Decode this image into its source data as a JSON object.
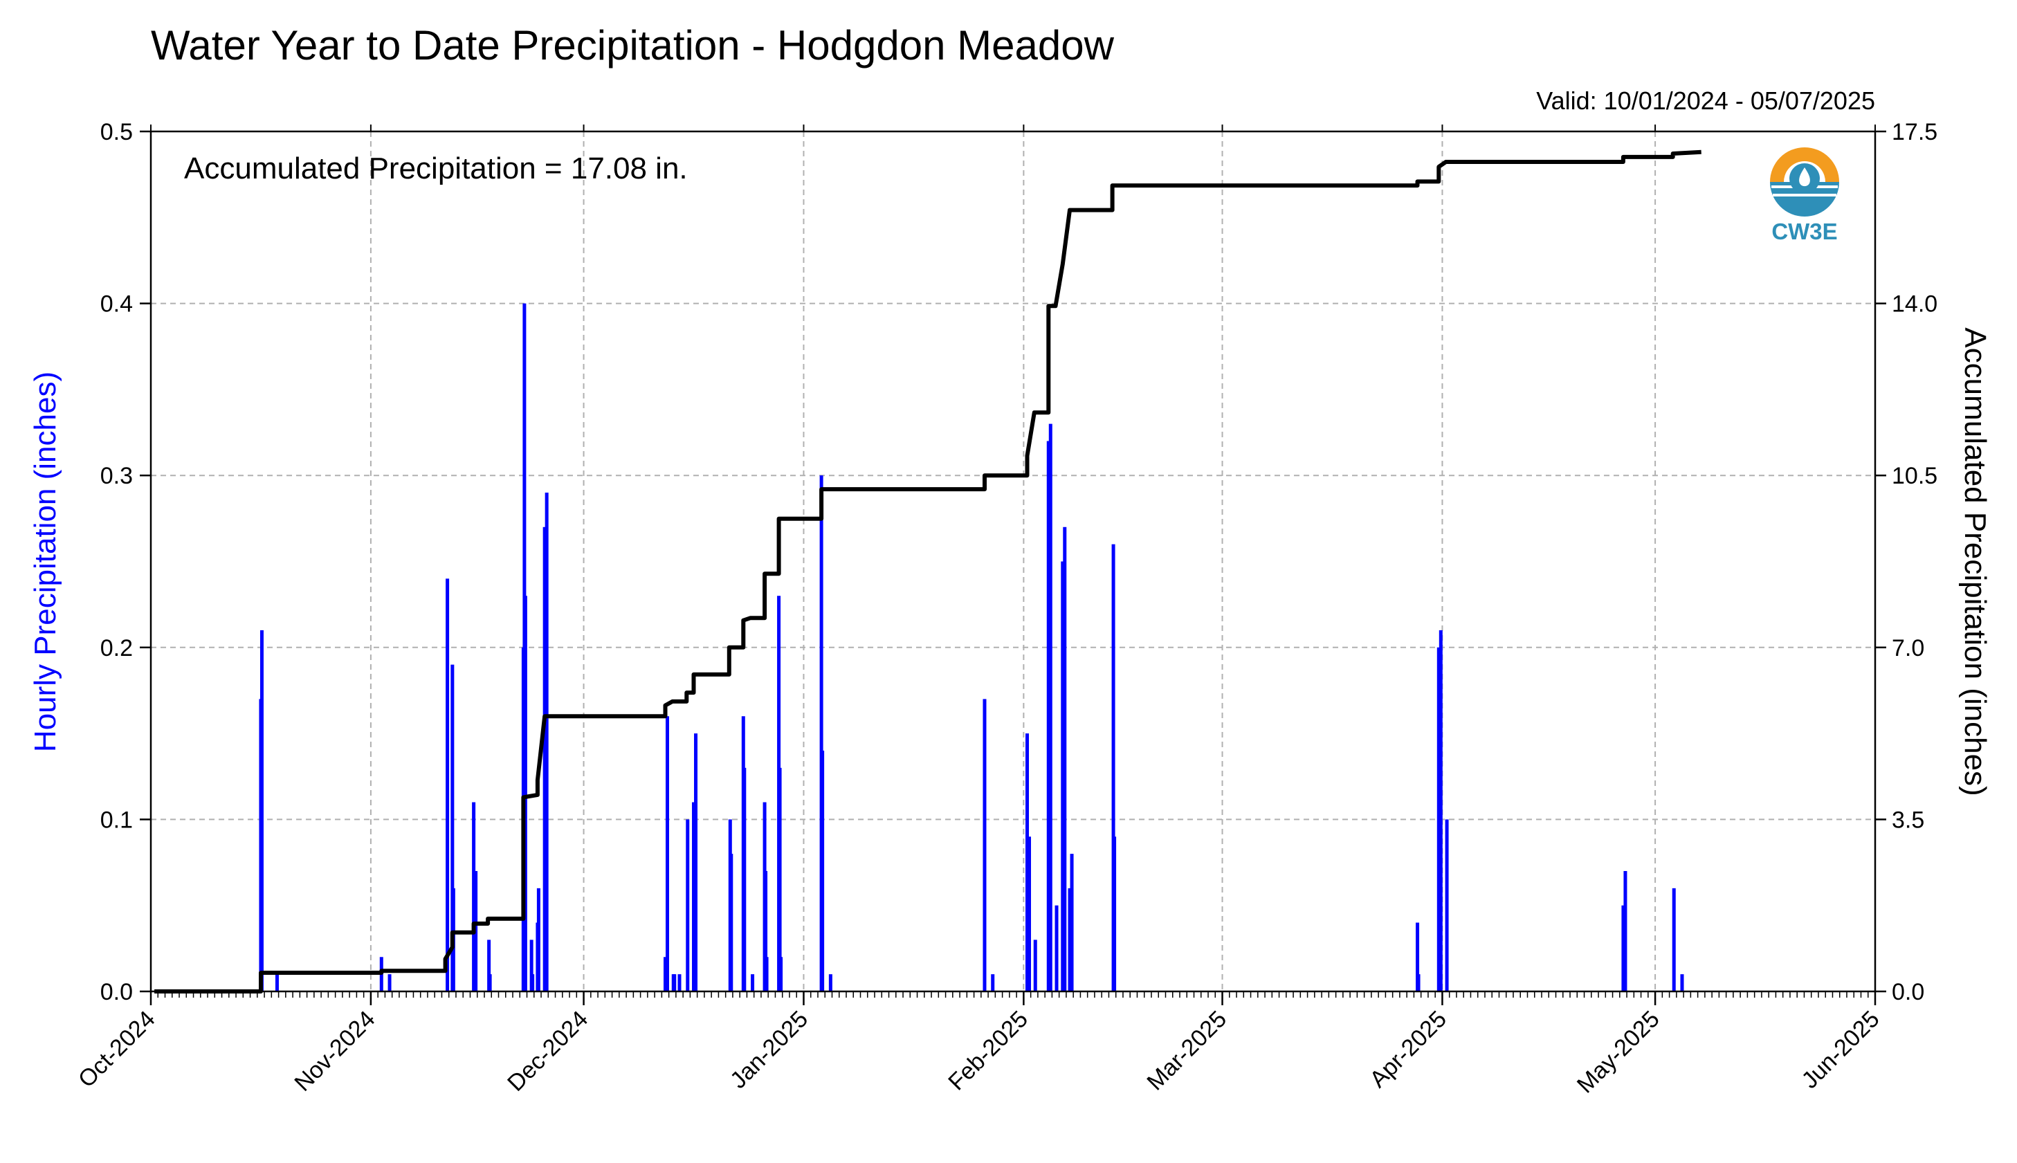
{
  "chart_data": {
    "type": "bar",
    "title": "Water Year to Date Precipitation - Hodgdon Meadow",
    "valid_text": "Valid: 10/01/2024 - 05/07/2025",
    "annotation": "Accumulated Precipitation = 17.08 in.",
    "logo_text": "CW3E",
    "ylabel_left": "Hourly Precipitation (inches)",
    "ylabel_right": "Accumulated Precipitation (inches)",
    "colors": {
      "hourly": "#0000ff",
      "accumulated": "#000000",
      "grid": "#b0b0b0",
      "logo_orange": "#f39c1f",
      "logo_blue": "#2e8fb8"
    },
    "grid": true,
    "x_range": [
      "2024-10-01",
      "2025-06-01"
    ],
    "ylim_left": [
      0,
      0.5
    ],
    "ylim_right": [
      0,
      17.5
    ],
    "x_tick_labels": [
      {
        "date": "2024-10-01",
        "label": "Oct-2024"
      },
      {
        "date": "2024-11-01",
        "label": "Nov-2024"
      },
      {
        "date": "2024-12-01",
        "label": "Dec-2024"
      },
      {
        "date": "2025-01-01",
        "label": "Jan-2025"
      },
      {
        "date": "2025-02-01",
        "label": "Feb-2025"
      },
      {
        "date": "2025-03-01",
        "label": "Mar-2025"
      },
      {
        "date": "2025-04-01",
        "label": "Apr-2025"
      },
      {
        "date": "2025-05-01",
        "label": "May-2025"
      },
      {
        "date": "2025-06-01",
        "label": "Jun-2025"
      }
    ],
    "y_left_ticks": [
      {
        "value": 0.0,
        "label": "0.0"
      },
      {
        "value": 0.1,
        "label": "0.1"
      },
      {
        "value": 0.2,
        "label": "0.2"
      },
      {
        "value": 0.3,
        "label": "0.3"
      },
      {
        "value": 0.4,
        "label": "0.4"
      },
      {
        "value": 0.5,
        "label": "0.5"
      }
    ],
    "y_right_ticks": [
      {
        "value": 0.0,
        "label": "0.0"
      },
      {
        "value": 3.5,
        "label": "3.5"
      },
      {
        "value": 7.0,
        "label": "7.0"
      },
      {
        "value": 10.5,
        "label": "10.5"
      },
      {
        "value": 14.0,
        "label": "14.0"
      },
      {
        "value": 17.5,
        "label": "17.5"
      }
    ],
    "series": [
      {
        "name": "Hourly Precipitation",
        "axis": "left",
        "kind": "bar",
        "points": [
          {
            "x": "2024-10-16",
            "y": 0.17
          },
          {
            "x": "2024-10-16",
            "y": 0.21
          },
          {
            "x": "2024-10-18",
            "y": 0.01
          },
          {
            "x": "2024-11-02",
            "y": 0.02
          },
          {
            "x": "2024-11-03",
            "y": 0.01
          },
          {
            "x": "2024-11-11",
            "y": 0.24
          },
          {
            "x": "2024-11-12",
            "y": 0.19
          },
          {
            "x": "2024-11-12",
            "y": 0.06
          },
          {
            "x": "2024-11-15",
            "y": 0.07
          },
          {
            "x": "2024-11-15",
            "y": 0.11
          },
          {
            "x": "2024-11-17",
            "y": 0.03
          },
          {
            "x": "2024-11-17",
            "y": 0.01
          },
          {
            "x": "2024-11-22",
            "y": 0.05
          },
          {
            "x": "2024-11-22",
            "y": 0.4
          },
          {
            "x": "2024-11-22",
            "y": 0.23
          },
          {
            "x": "2024-11-22",
            "y": 0.2
          },
          {
            "x": "2024-11-23",
            "y": 0.03
          },
          {
            "x": "2024-11-23",
            "y": 0.01
          },
          {
            "x": "2024-11-24",
            "y": 0.04
          },
          {
            "x": "2024-11-24",
            "y": 0.06
          },
          {
            "x": "2024-11-25",
            "y": 0.29
          },
          {
            "x": "2024-11-25",
            "y": 0.27
          },
          {
            "x": "2024-11-25",
            "y": 0.04
          },
          {
            "x": "2024-12-12",
            "y": 0.16
          },
          {
            "x": "2024-12-12",
            "y": 0.02
          },
          {
            "x": "2024-12-13",
            "y": 0.01
          },
          {
            "x": "2024-12-13",
            "y": 0.01
          },
          {
            "x": "2024-12-14",
            "y": 0.01
          },
          {
            "x": "2024-12-15",
            "y": 0.1
          },
          {
            "x": "2024-12-16",
            "y": 0.15
          },
          {
            "x": "2024-12-16",
            "y": 0.11
          },
          {
            "x": "2024-12-21",
            "y": 0.1
          },
          {
            "x": "2024-12-21",
            "y": 0.08
          },
          {
            "x": "2024-12-23",
            "y": 0.16
          },
          {
            "x": "2024-12-23",
            "y": 0.13
          },
          {
            "x": "2024-12-24",
            "y": 0.01
          },
          {
            "x": "2024-12-26",
            "y": 0.11
          },
          {
            "x": "2024-12-26",
            "y": 0.07
          },
          {
            "x": "2024-12-26",
            "y": 0.02
          },
          {
            "x": "2024-12-28",
            "y": 0.23
          },
          {
            "x": "2024-12-28",
            "y": 0.13
          },
          {
            "x": "2024-12-28",
            "y": 0.02
          },
          {
            "x": "2025-01-03",
            "y": 0.3
          },
          {
            "x": "2025-01-03",
            "y": 0.14
          },
          {
            "x": "2025-01-04",
            "y": 0.01
          },
          {
            "x": "2025-01-26",
            "y": 0.17
          },
          {
            "x": "2025-01-27",
            "y": 0.01
          },
          {
            "x": "2025-02-01",
            "y": 0.09
          },
          {
            "x": "2025-02-01",
            "y": 0.15
          },
          {
            "x": "2025-02-02",
            "y": 0.03
          },
          {
            "x": "2025-02-04",
            "y": 0.33
          },
          {
            "x": "2025-02-04",
            "y": 0.32
          },
          {
            "x": "2025-02-05",
            "y": 0.05
          },
          {
            "x": "2025-02-06",
            "y": 0.27
          },
          {
            "x": "2025-02-06",
            "y": 0.25
          },
          {
            "x": "2025-02-06",
            "y": 0.17
          },
          {
            "x": "2025-02-07",
            "y": 0.08
          },
          {
            "x": "2025-02-07",
            "y": 0.06
          },
          {
            "x": "2025-02-13",
            "y": 0.26
          },
          {
            "x": "2025-02-13",
            "y": 0.09
          },
          {
            "x": "2025-03-28",
            "y": 0.04
          },
          {
            "x": "2025-03-28",
            "y": 0.01
          },
          {
            "x": "2025-03-31",
            "y": 0.21
          },
          {
            "x": "2025-03-31",
            "y": 0.2
          },
          {
            "x": "2025-04-01",
            "y": 0.1
          },
          {
            "x": "2025-04-26",
            "y": 0.07
          },
          {
            "x": "2025-04-26",
            "y": 0.05
          },
          {
            "x": "2025-05-03",
            "y": 0.06
          },
          {
            "x": "2025-05-04",
            "y": 0.01
          }
        ]
      },
      {
        "name": "Accumulated Precipitation",
        "axis": "right",
        "kind": "step-line",
        "points": [
          {
            "x": "2024-10-01",
            "y": 0.0
          },
          {
            "x": "2024-10-16",
            "y": 0.0
          },
          {
            "x": "2024-10-16",
            "y": 0.38
          },
          {
            "x": "2024-11-02",
            "y": 0.38
          },
          {
            "x": "2024-11-02",
            "y": 0.42
          },
          {
            "x": "2024-11-11",
            "y": 0.42
          },
          {
            "x": "2024-11-11",
            "y": 0.66
          },
          {
            "x": "2024-11-12",
            "y": 0.9
          },
          {
            "x": "2024-11-12",
            "y": 1.2
          },
          {
            "x": "2024-11-15",
            "y": 1.2
          },
          {
            "x": "2024-11-15",
            "y": 1.38
          },
          {
            "x": "2024-11-17",
            "y": 1.38
          },
          {
            "x": "2024-11-17",
            "y": 1.48
          },
          {
            "x": "2024-11-22",
            "y": 1.48
          },
          {
            "x": "2024-11-22",
            "y": 2.4
          },
          {
            "x": "2024-11-22",
            "y": 3.95
          },
          {
            "x": "2024-11-24",
            "y": 4.0
          },
          {
            "x": "2024-11-24",
            "y": 4.3
          },
          {
            "x": "2024-11-25",
            "y": 5.6
          },
          {
            "x": "2024-12-12",
            "y": 5.6
          },
          {
            "x": "2024-12-12",
            "y": 5.82
          },
          {
            "x": "2024-12-13",
            "y": 5.9
          },
          {
            "x": "2024-12-15",
            "y": 5.9
          },
          {
            "x": "2024-12-15",
            "y": 6.08
          },
          {
            "x": "2024-12-16",
            "y": 6.08
          },
          {
            "x": "2024-12-16",
            "y": 6.45
          },
          {
            "x": "2024-12-21",
            "y": 6.45
          },
          {
            "x": "2024-12-21",
            "y": 7.0
          },
          {
            "x": "2024-12-23",
            "y": 7.0
          },
          {
            "x": "2024-12-23",
            "y": 7.55
          },
          {
            "x": "2024-12-24",
            "y": 7.6
          },
          {
            "x": "2024-12-26",
            "y": 7.6
          },
          {
            "x": "2024-12-26",
            "y": 8.5
          },
          {
            "x": "2024-12-28",
            "y": 8.5
          },
          {
            "x": "2024-12-28",
            "y": 9.62
          },
          {
            "x": "2025-01-03",
            "y": 9.62
          },
          {
            "x": "2025-01-03",
            "y": 10.22
          },
          {
            "x": "2025-01-26",
            "y": 10.22
          },
          {
            "x": "2025-01-26",
            "y": 10.5
          },
          {
            "x": "2025-02-01",
            "y": 10.5
          },
          {
            "x": "2025-02-01",
            "y": 10.9
          },
          {
            "x": "2025-02-02",
            "y": 11.78
          },
          {
            "x": "2025-02-04",
            "y": 11.78
          },
          {
            "x": "2025-02-04",
            "y": 13.95
          },
          {
            "x": "2025-02-05",
            "y": 13.95
          },
          {
            "x": "2025-02-06",
            "y": 14.8
          },
          {
            "x": "2025-02-07",
            "y": 15.9
          },
          {
            "x": "2025-02-13",
            "y": 15.9
          },
          {
            "x": "2025-02-13",
            "y": 16.4
          },
          {
            "x": "2025-03-28",
            "y": 16.4
          },
          {
            "x": "2025-03-28",
            "y": 16.48
          },
          {
            "x": "2025-03-31",
            "y": 16.48
          },
          {
            "x": "2025-03-31",
            "y": 16.78
          },
          {
            "x": "2025-04-01",
            "y": 16.88
          },
          {
            "x": "2025-04-26",
            "y": 16.88
          },
          {
            "x": "2025-04-26",
            "y": 16.98
          },
          {
            "x": "2025-05-03",
            "y": 16.98
          },
          {
            "x": "2025-05-03",
            "y": 17.05
          },
          {
            "x": "2025-05-07",
            "y": 17.08
          }
        ]
      }
    ]
  }
}
